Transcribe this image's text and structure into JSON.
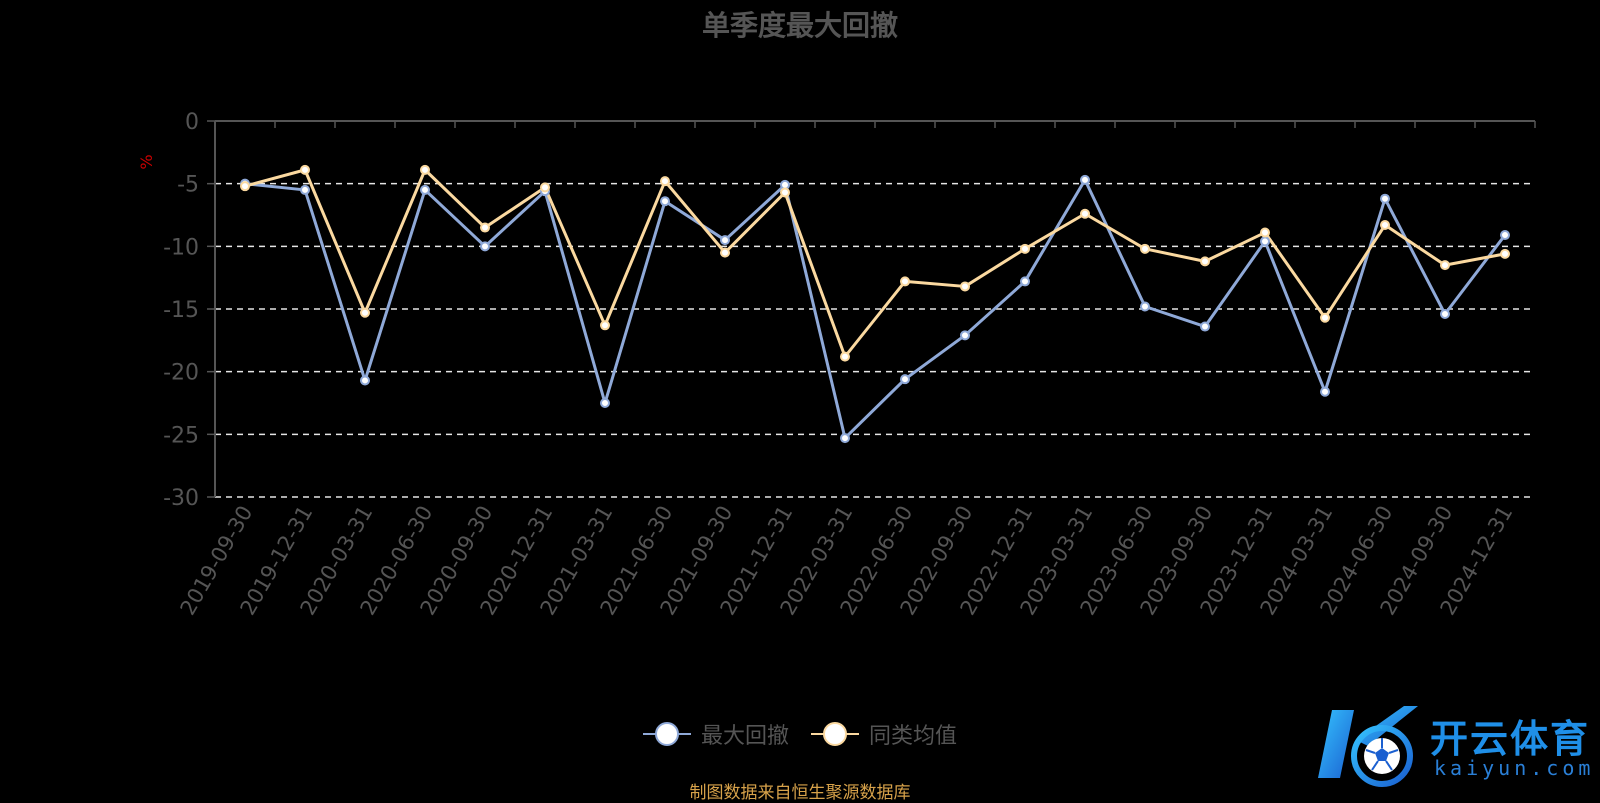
{
  "chart_data": {
    "type": "line",
    "title": "单季度最大回撤",
    "ylabel": "%",
    "xlabel": "",
    "ylim": [
      -30,
      0
    ],
    "yticks": [
      0,
      -5,
      -10,
      -15,
      -20,
      -25,
      -30
    ],
    "grid": "dashed-horizontal",
    "legend_position": "bottom-center",
    "categories": [
      "2019-09-30",
      "2019-12-31",
      "2020-03-31",
      "2020-06-30",
      "2020-09-30",
      "2020-12-31",
      "2021-03-31",
      "2021-06-30",
      "2021-09-30",
      "2021-12-31",
      "2022-03-31",
      "2022-06-30",
      "2022-09-30",
      "2022-12-31",
      "2023-03-31",
      "2023-06-30",
      "2023-09-30",
      "2023-12-31",
      "2024-03-31",
      "2024-06-30",
      "2024-09-30",
      "2024-12-31"
    ],
    "series": [
      {
        "name": "最大回撤",
        "color": "#8fa9d8",
        "values": [
          -5.0,
          -5.5,
          -20.7,
          -5.5,
          -10.0,
          -5.6,
          -22.5,
          -6.4,
          -9.5,
          -5.1,
          -25.3,
          -20.6,
          -17.1,
          -12.8,
          -4.7,
          -14.8,
          -16.4,
          -9.6,
          -21.6,
          -6.2,
          -15.4,
          -9.1
        ]
      },
      {
        "name": "同类均值",
        "color": "#fbd9a0",
        "values": [
          -5.2,
          -3.9,
          -15.3,
          -3.9,
          -8.5,
          -5.3,
          -16.3,
          -4.8,
          -10.5,
          -5.7,
          -18.8,
          -12.8,
          -13.2,
          -10.2,
          -7.4,
          -10.2,
          -11.2,
          -8.9,
          -15.7,
          -8.3,
          -11.5,
          -10.6
        ]
      }
    ]
  },
  "source": "制图数据来自恒生聚源数据库",
  "watermark": {
    "logo_icon": "soccer-ball-k-icon",
    "name_cn": "开云体育",
    "name_en": "kaiyun.com"
  }
}
